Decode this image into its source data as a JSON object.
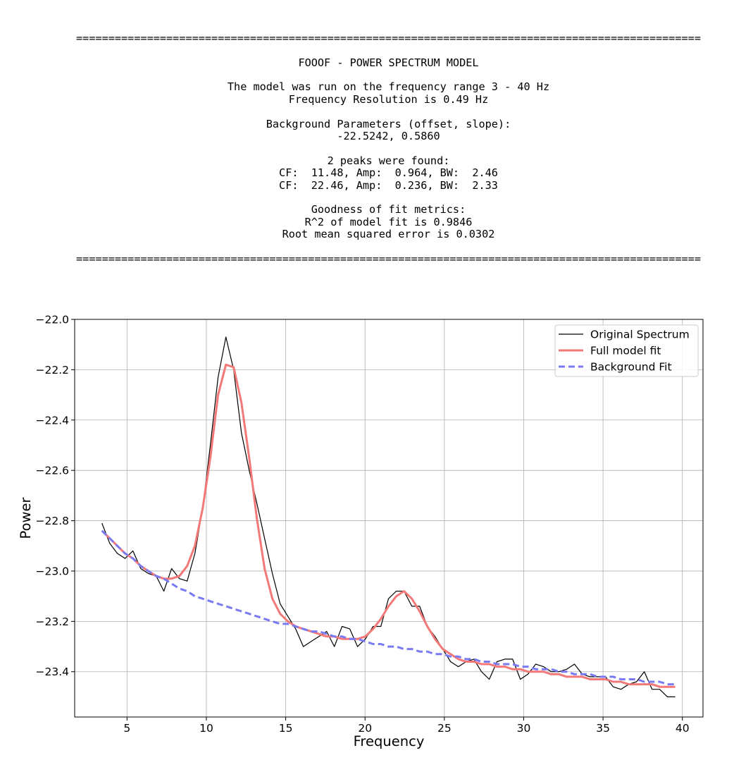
{
  "report": {
    "separator": "=================================================================================================",
    "title": "FOOOF - POWER SPECTRUM MODEL",
    "range_line": "The model was run on the frequency range 3 - 40 Hz",
    "resolution_line": "Frequency Resolution is 0.49 Hz",
    "bg_header": "Background Parameters (offset, slope):",
    "bg_values": "-22.5242, 0.5860",
    "peaks_header": "2 peaks were found:",
    "peak_1": "CF:  11.48, Amp:  0.964, BW:  2.46",
    "peak_2": "CF:  22.46, Amp:  0.236, BW:  2.33",
    "fit_header": "Goodness of fit metrics:",
    "r2_line": "R^2 of model fit is 0.9846",
    "rmse_line": "Root mean squared error is 0.0302"
  },
  "chart_data": {
    "type": "line",
    "xlabel": "Frequency",
    "ylabel": "Power",
    "xlim": [
      1.7,
      41.3
    ],
    "ylim": [
      -23.58,
      -22.0
    ],
    "xticks": [
      5,
      10,
      15,
      20,
      25,
      30,
      35,
      40
    ],
    "yticks": [
      -22.0,
      -22.2,
      -22.4,
      -22.6,
      -22.8,
      -23.0,
      -23.2,
      -23.4
    ],
    "ytick_labels": [
      "−22.0",
      "−22.2",
      "−22.4",
      "−22.6",
      "−22.8",
      "−23.0",
      "−23.2",
      "−23.4"
    ],
    "grid": true,
    "legend_position": "top-right",
    "x": [
      3.42,
      3.91,
      4.39,
      4.88,
      5.37,
      5.86,
      6.35,
      6.84,
      7.32,
      7.81,
      8.3,
      8.79,
      9.28,
      9.77,
      10.25,
      10.74,
      11.23,
      11.72,
      12.21,
      12.7,
      13.18,
      13.67,
      14.16,
      14.65,
      15.14,
      15.63,
      16.11,
      16.6,
      17.09,
      17.58,
      18.07,
      18.55,
      19.04,
      19.53,
      20.02,
      20.51,
      21.0,
      21.48,
      21.97,
      22.46,
      22.95,
      23.44,
      23.93,
      24.41,
      24.9,
      25.39,
      25.88,
      26.37,
      26.86,
      27.34,
      27.83,
      28.32,
      28.81,
      29.3,
      29.79,
      30.27,
      30.76,
      31.25,
      31.74,
      32.23,
      32.71,
      33.2,
      33.69,
      34.18,
      34.67,
      35.16,
      35.64,
      36.13,
      36.62,
      37.11,
      37.6,
      38.09,
      38.57,
      39.06,
      39.55
    ],
    "series": [
      {
        "name": "Original Spectrum",
        "color": "#000000",
        "style": "solid",
        "values": [
          -22.81,
          -22.89,
          -22.93,
          -22.95,
          -22.92,
          -22.99,
          -23.01,
          -23.02,
          -23.08,
          -22.99,
          -23.03,
          -23.04,
          -22.93,
          -22.75,
          -22.5,
          -22.23,
          -22.07,
          -22.2,
          -22.45,
          -22.6,
          -22.73,
          -22.87,
          -23.01,
          -23.13,
          -23.18,
          -23.23,
          -23.3,
          -23.28,
          -23.26,
          -23.24,
          -23.3,
          -23.22,
          -23.23,
          -23.3,
          -23.27,
          -23.22,
          -23.22,
          -23.11,
          -23.08,
          -23.08,
          -23.14,
          -23.14,
          -23.22,
          -23.26,
          -23.31,
          -23.36,
          -23.38,
          -23.36,
          -23.35,
          -23.4,
          -23.43,
          -23.36,
          -23.35,
          -23.35,
          -23.43,
          -23.41,
          -23.37,
          -23.38,
          -23.4,
          -23.4,
          -23.39,
          -23.37,
          -23.41,
          -23.42,
          -23.42,
          -23.42,
          -23.46,
          -23.47,
          -23.45,
          -23.44,
          -23.4,
          -23.47,
          -23.47,
          -23.5,
          -23.5
        ]
      },
      {
        "name": "Full model fit",
        "color": "#f37878",
        "style": "solid",
        "values": [
          -22.84,
          -22.87,
          -22.9,
          -22.93,
          -22.95,
          -22.98,
          -23.0,
          -23.02,
          -23.03,
          -23.03,
          -23.02,
          -22.98,
          -22.9,
          -22.75,
          -22.55,
          -22.3,
          -22.18,
          -22.19,
          -22.33,
          -22.55,
          -22.79,
          -22.99,
          -23.11,
          -23.17,
          -23.2,
          -23.22,
          -23.23,
          -23.24,
          -23.25,
          -23.26,
          -23.26,
          -23.27,
          -23.27,
          -23.27,
          -23.26,
          -23.23,
          -23.19,
          -23.14,
          -23.1,
          -23.08,
          -23.11,
          -23.16,
          -23.22,
          -23.27,
          -23.31,
          -23.33,
          -23.35,
          -23.36,
          -23.36,
          -23.37,
          -23.37,
          -23.38,
          -23.38,
          -23.39,
          -23.39,
          -23.4,
          -23.4,
          -23.4,
          -23.41,
          -23.41,
          -23.42,
          -23.42,
          -23.42,
          -23.43,
          -23.43,
          -23.43,
          -23.44,
          -23.44,
          -23.45,
          -23.45,
          -23.45,
          -23.45,
          -23.46,
          -23.46,
          -23.46
        ]
      },
      {
        "name": "Background Fit",
        "color": "#7a7af3",
        "style": "dashed",
        "values": [
          -22.84,
          -22.87,
          -22.9,
          -22.93,
          -22.95,
          -22.98,
          -23.0,
          -23.02,
          -23.03,
          -23.05,
          -23.07,
          -23.08,
          -23.1,
          -23.11,
          -23.12,
          -23.13,
          -23.14,
          -23.15,
          -23.16,
          -23.17,
          -23.18,
          -23.19,
          -23.2,
          -23.21,
          -23.21,
          -23.22,
          -23.23,
          -23.24,
          -23.24,
          -23.25,
          -23.26,
          -23.26,
          -23.27,
          -23.27,
          -23.28,
          -23.29,
          -23.29,
          -23.3,
          -23.3,
          -23.31,
          -23.31,
          -23.32,
          -23.32,
          -23.33,
          -23.33,
          -23.34,
          -23.34,
          -23.35,
          -23.35,
          -23.36,
          -23.36,
          -23.37,
          -23.37,
          -23.37,
          -23.38,
          -23.38,
          -23.39,
          -23.39,
          -23.39,
          -23.4,
          -23.4,
          -23.41,
          -23.41,
          -23.41,
          -23.42,
          -23.42,
          -23.42,
          -23.43,
          -23.43,
          -23.43,
          -23.44,
          -23.44,
          -23.44,
          -23.45,
          -23.45
        ]
      }
    ]
  }
}
